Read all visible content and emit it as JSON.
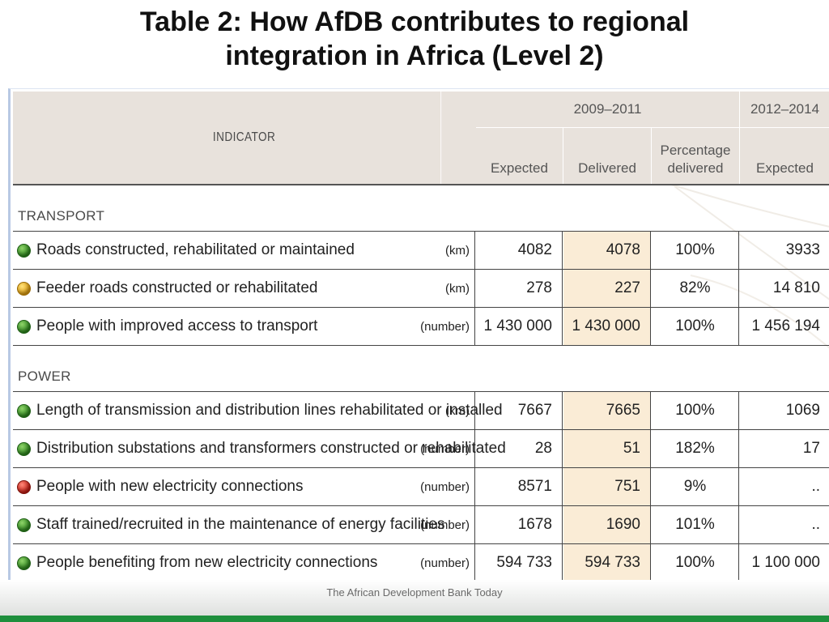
{
  "title_line1": "Table 2: How AfDB contributes to regional",
  "title_line2": "integration in Africa (Level 2)",
  "header": {
    "indicator": "INDICATOR",
    "period1": "2009–2011",
    "period2": "2012–2014",
    "expected": "Expected",
    "delivered": "Delivered",
    "percentage1": "Percentage",
    "percentage2": "delivered",
    "expected2": "Expected"
  },
  "sections": [
    {
      "label": "TRANSPORT",
      "rows": [
        {
          "status": "green",
          "indicator": "Roads constructed, rehabilitated or maintained",
          "unit": "(km)",
          "expected": "4082",
          "delivered": "4078",
          "percentage": "100%",
          "expected_2012_2014": "3933"
        },
        {
          "status": "amber",
          "indicator": "Feeder roads constructed or rehabilitated",
          "unit": "(km)",
          "expected": "278",
          "delivered": "227",
          "percentage": "82%",
          "expected_2012_2014": "14 810"
        },
        {
          "status": "green",
          "indicator": "People with improved access to transport",
          "unit": "(number)",
          "expected": "1 430 000",
          "delivered": "1 430 000",
          "percentage": "100%",
          "expected_2012_2014": "1 456 194"
        }
      ]
    },
    {
      "label": "POWER",
      "rows": [
        {
          "status": "green",
          "indicator": "Length of transmission and distribution lines rehabilitated or installed",
          "unit": "(km)",
          "expected": "7667",
          "delivered": "7665",
          "percentage": "100%",
          "expected_2012_2014": "1069"
        },
        {
          "status": "green",
          "indicator": "Distribution substations and transformers constructed or rehabilitated",
          "unit": "(number)",
          "expected": "28",
          "delivered": "51",
          "percentage": "182%",
          "expected_2012_2014": "17"
        },
        {
          "status": "red",
          "indicator": "People with new electricity connections",
          "unit": "(number)",
          "expected": "8571",
          "delivered": "751",
          "percentage": "9%",
          "expected_2012_2014": ".."
        },
        {
          "status": "green",
          "indicator": "Staff trained/recruited in the maintenance of energy facilities",
          "unit": "(number)",
          "expected": "1678",
          "delivered": "1690",
          "percentage": "101%",
          "expected_2012_2014": ".."
        },
        {
          "status": "green",
          "indicator": "People benefiting from new electricity connections",
          "unit": "(number)",
          "expected": "594 733",
          "delivered": "594 733",
          "percentage": "100%",
          "expected_2012_2014": "1 100 000"
        }
      ]
    }
  ],
  "footer": "The African Development Bank Today",
  "colors": {
    "header_bg": "#e8e2dc",
    "delivered_bg": "#faecd6",
    "footer_green": "#1e8f3d"
  }
}
